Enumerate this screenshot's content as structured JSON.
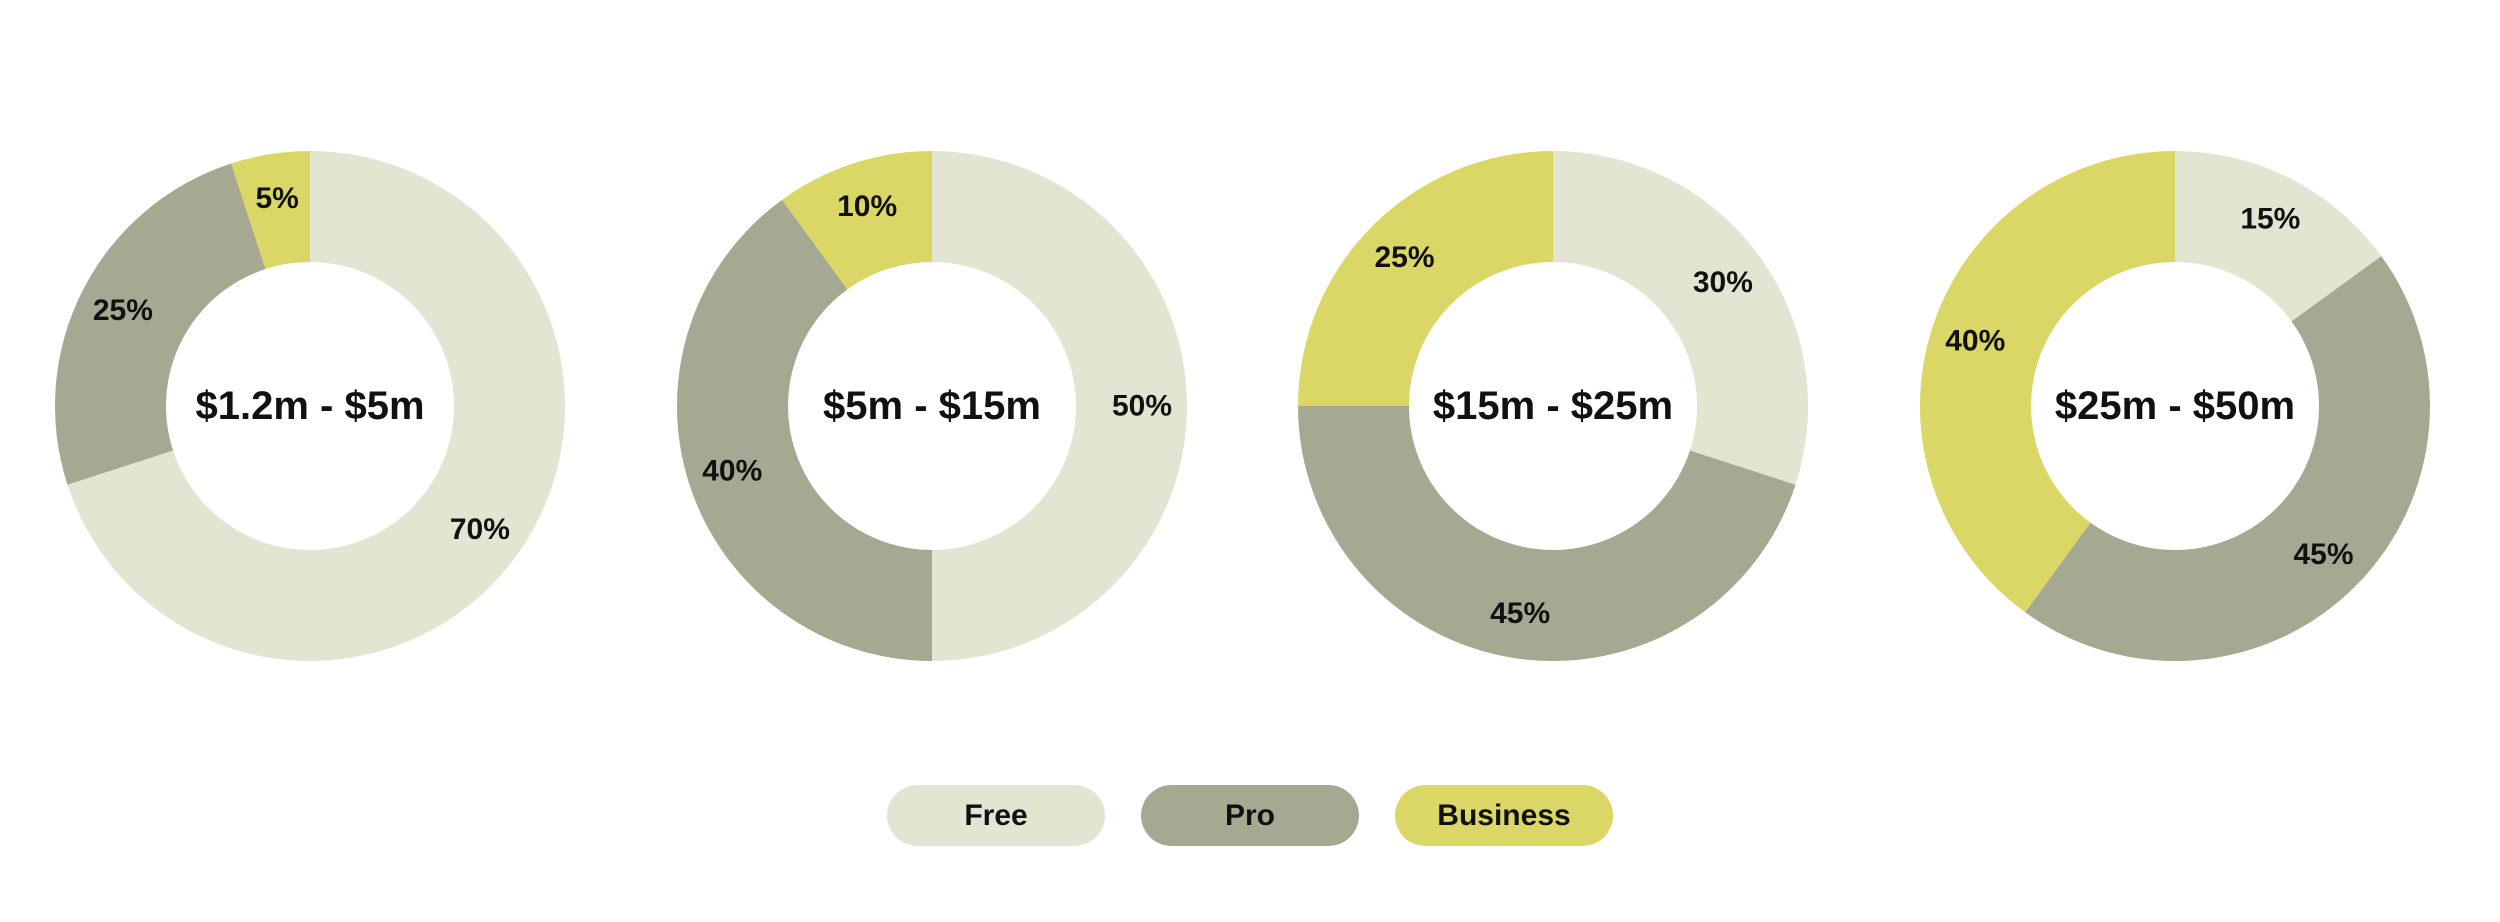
{
  "colors": {
    "Free": "#e3e5d3",
    "Pro": "#a6a991",
    "Business": "#dad766"
  },
  "legend": [
    {
      "label": "Free",
      "color": "#e3e5d3"
    },
    {
      "label": "Pro",
      "color": "#a6a991"
    },
    {
      "label": "Business",
      "color": "#dad766"
    }
  ],
  "chart_data": [
    {
      "type": "pie",
      "donut": true,
      "center_label": "$1.2m - $5m",
      "slices": [
        {
          "category": "Free",
          "value": 70,
          "label": "70%"
        },
        {
          "category": "Pro",
          "value": 25,
          "label": "25%"
        },
        {
          "category": "Business",
          "value": 5,
          "label": "5%"
        }
      ]
    },
    {
      "type": "pie",
      "donut": true,
      "center_label": "$5m - $15m",
      "slices": [
        {
          "category": "Free",
          "value": 50,
          "label": "50%"
        },
        {
          "category": "Pro",
          "value": 40,
          "label": "40%"
        },
        {
          "category": "Business",
          "value": 10,
          "label": "10%"
        }
      ]
    },
    {
      "type": "pie",
      "donut": true,
      "center_label": "$15m - $25m",
      "slices": [
        {
          "category": "Free",
          "value": 30,
          "label": "30%"
        },
        {
          "category": "Pro",
          "value": 45,
          "label": "45%"
        },
        {
          "category": "Business",
          "value": 25,
          "label": "25%"
        }
      ]
    },
    {
      "type": "pie",
      "donut": true,
      "center_label": "$25m - $50m",
      "slices": [
        {
          "category": "Free",
          "value": 15,
          "label": "15%"
        },
        {
          "category": "Pro",
          "value": 45,
          "label": "45%"
        },
        {
          "category": "Business",
          "value": 40,
          "label": "40%"
        }
      ]
    }
  ]
}
